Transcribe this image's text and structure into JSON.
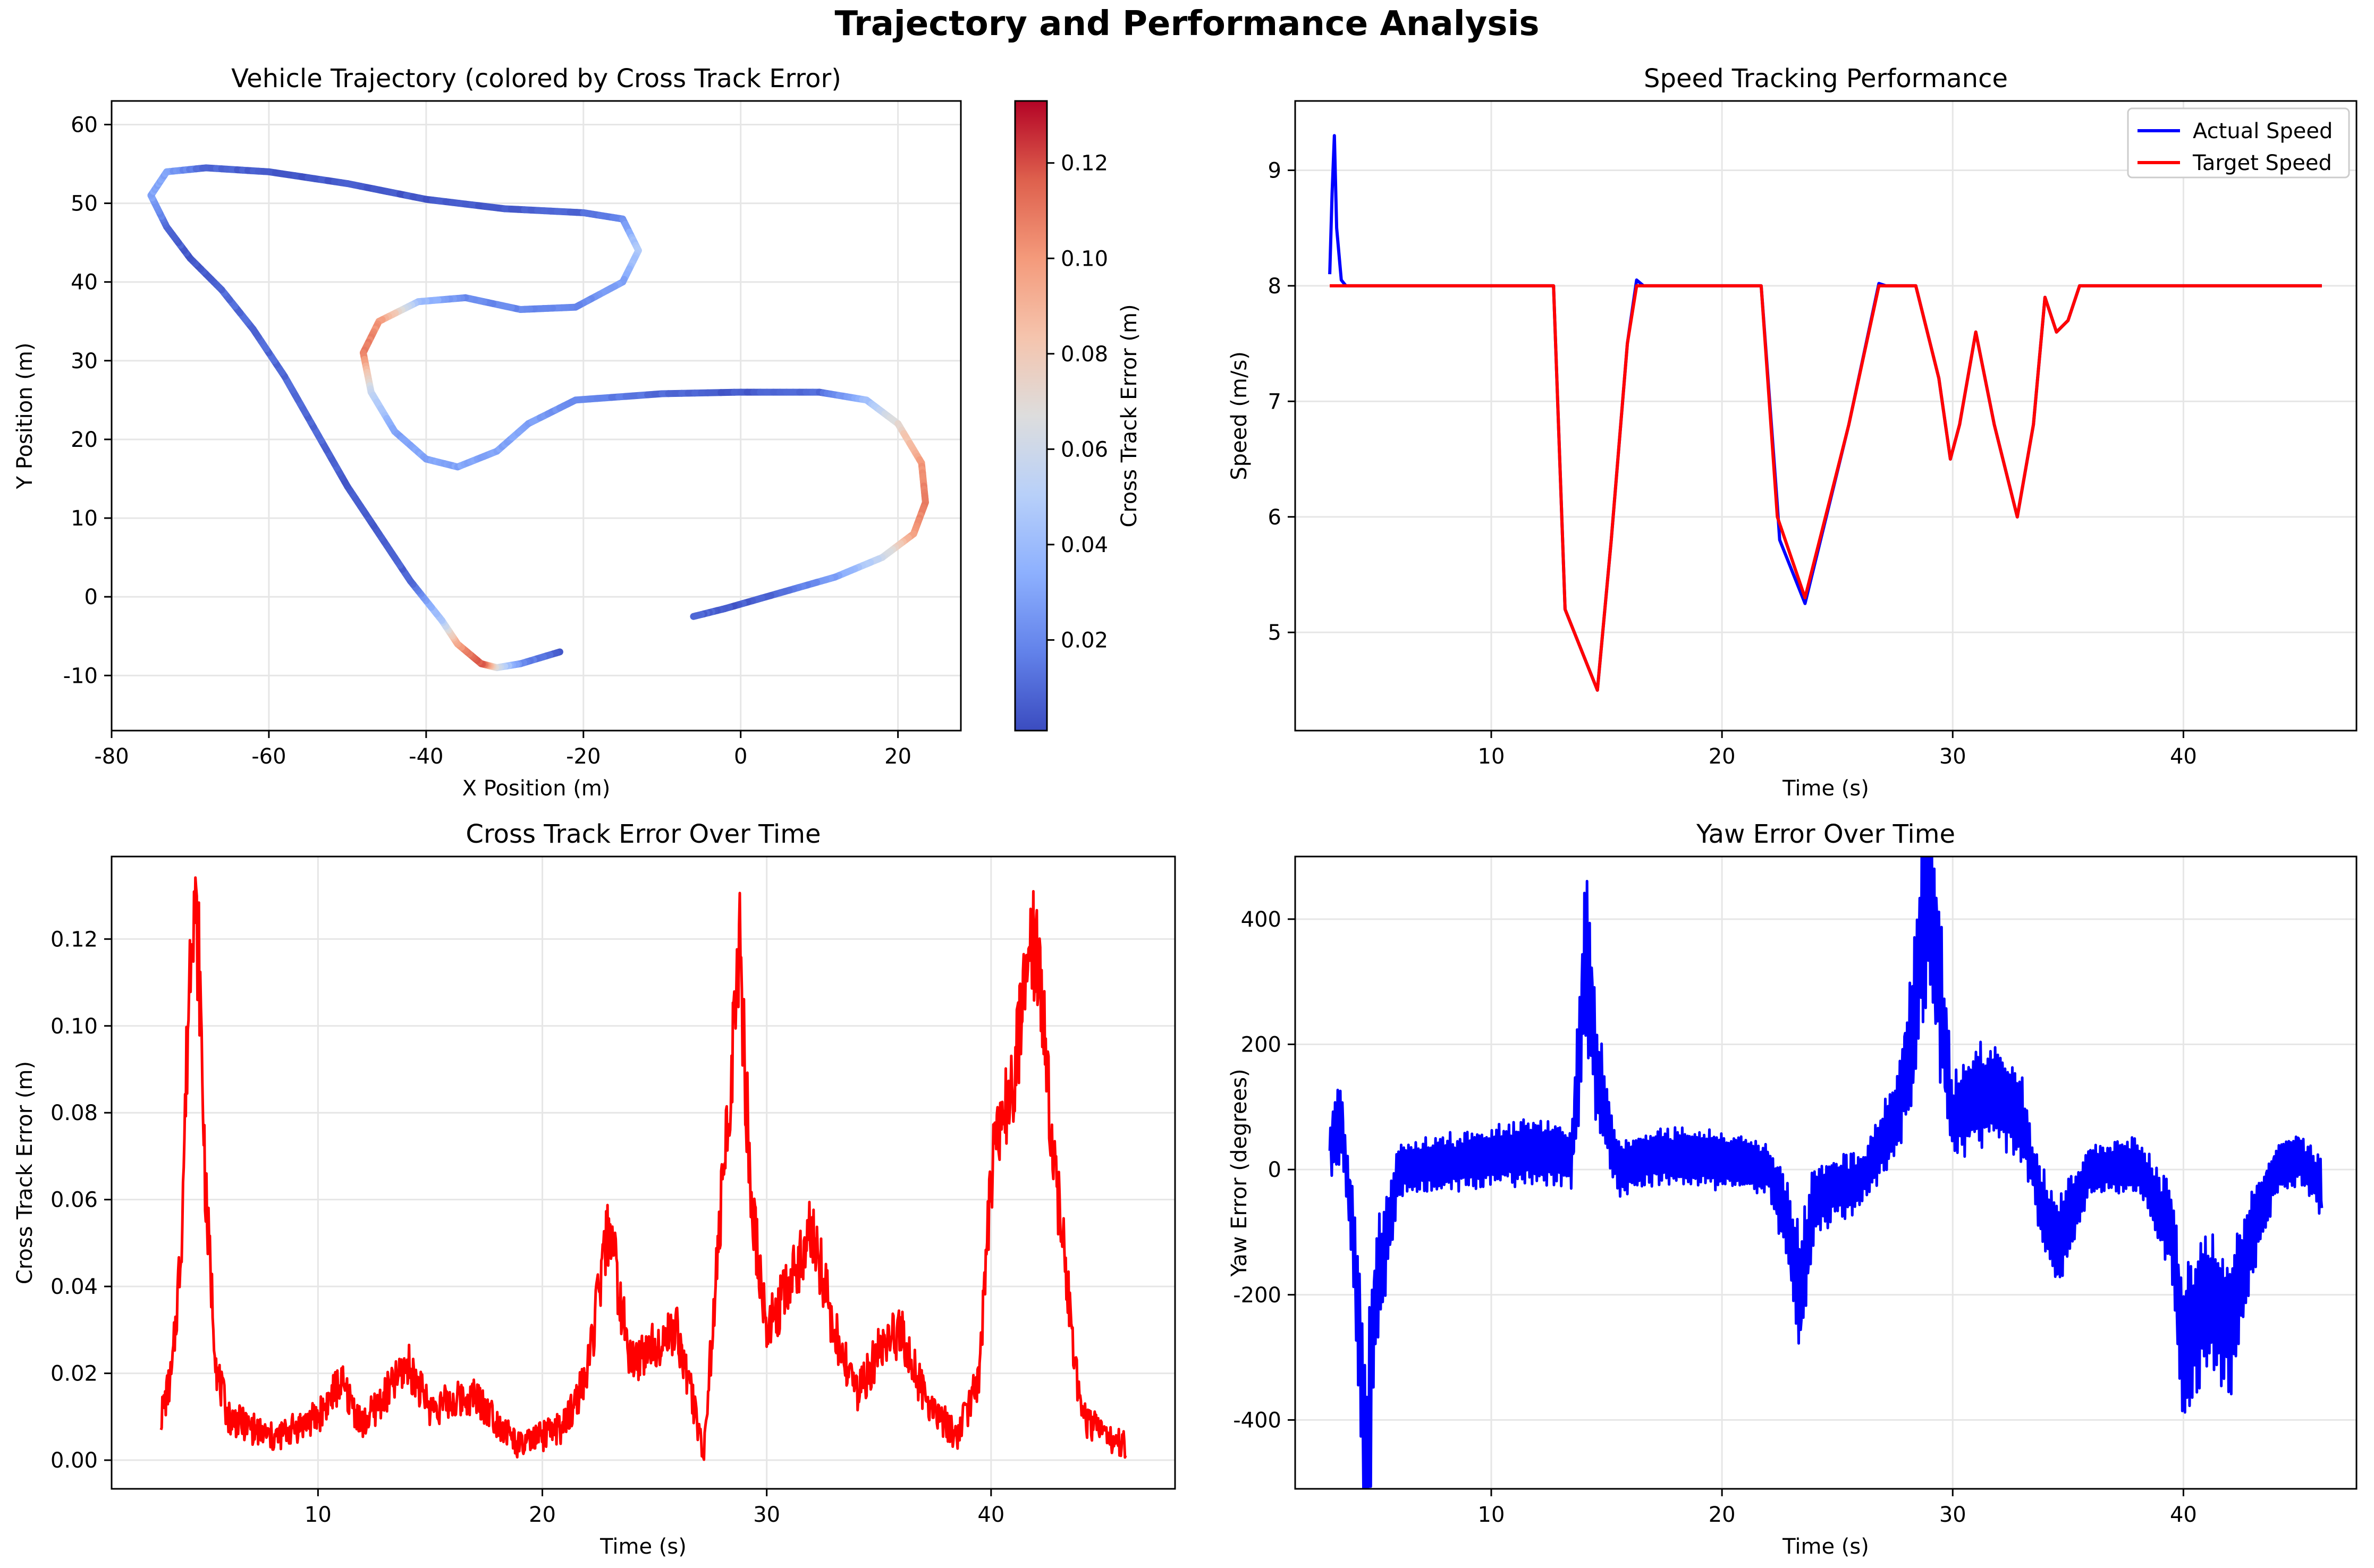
{
  "figure_title": "Trajectory and Performance Analysis",
  "chart_data": [
    {
      "type": "scatter",
      "title": "Vehicle Trajectory (colored by Cross Track Error)",
      "xlabel": "X Position (m)",
      "ylabel": "Y Position (m)",
      "xlim": [
        -80,
        28
      ],
      "ylim": [
        -17,
        63
      ],
      "xticks": [
        -80,
        -60,
        -40,
        -20,
        0,
        20
      ],
      "yticks": [
        -10,
        0,
        10,
        20,
        30,
        40,
        50,
        60
      ],
      "grid": true,
      "colormap": "coolwarm",
      "colorbar": {
        "label": "Cross Track Error (m)",
        "min": 0.001,
        "max": 0.133,
        "ticks": [
          0.02,
          0.04,
          0.06,
          0.08,
          0.1,
          0.12
        ],
        "tick_labels": [
          "0.02",
          "0.04",
          "0.06",
          "0.08",
          "0.10",
          "0.12"
        ]
      },
      "points": [
        {
          "x": -23,
          "y": -7,
          "c": 0.005
        },
        {
          "x": -28,
          "y": -8.5,
          "c": 0.02
        },
        {
          "x": -31,
          "y": -9,
          "c": 0.06
        },
        {
          "x": -33,
          "y": -8.5,
          "c": 0.12
        },
        {
          "x": -36,
          "y": -6,
          "c": 0.1
        },
        {
          "x": -38,
          "y": -3,
          "c": 0.05
        },
        {
          "x": -42,
          "y": 2,
          "c": 0.01
        },
        {
          "x": -46,
          "y": 8,
          "c": 0.005
        },
        {
          "x": -50,
          "y": 14,
          "c": 0.005
        },
        {
          "x": -54,
          "y": 21,
          "c": 0.01
        },
        {
          "x": -58,
          "y": 28,
          "c": 0.01
        },
        {
          "x": -62,
          "y": 34,
          "c": 0.01
        },
        {
          "x": -66,
          "y": 39,
          "c": 0.01
        },
        {
          "x": -70,
          "y": 43,
          "c": 0.005
        },
        {
          "x": -73,
          "y": 47,
          "c": 0.01
        },
        {
          "x": -75,
          "y": 51,
          "c": 0.03
        },
        {
          "x": -73,
          "y": 54,
          "c": 0.03
        },
        {
          "x": -68,
          "y": 54.5,
          "c": 0.01
        },
        {
          "x": -60,
          "y": 54,
          "c": 0.005
        },
        {
          "x": -50,
          "y": 52.5,
          "c": 0.005
        },
        {
          "x": -40,
          "y": 50.5,
          "c": 0.005
        },
        {
          "x": -30,
          "y": 49.3,
          "c": 0.005
        },
        {
          "x": -20,
          "y": 48.8,
          "c": 0.01
        },
        {
          "x": -15,
          "y": 48,
          "c": 0.02
        },
        {
          "x": -13,
          "y": 44,
          "c": 0.05
        },
        {
          "x": -15,
          "y": 40,
          "c": 0.03
        },
        {
          "x": -21,
          "y": 36.8,
          "c": 0.02
        },
        {
          "x": -28,
          "y": 36.5,
          "c": 0.02
        },
        {
          "x": -35,
          "y": 38,
          "c": 0.02
        },
        {
          "x": -41,
          "y": 37.5,
          "c": 0.04
        },
        {
          "x": -46,
          "y": 35,
          "c": 0.1
        },
        {
          "x": -48,
          "y": 31,
          "c": 0.11
        },
        {
          "x": -47,
          "y": 26,
          "c": 0.06
        },
        {
          "x": -44,
          "y": 21,
          "c": 0.03
        },
        {
          "x": -40,
          "y": 17.5,
          "c": 0.03
        },
        {
          "x": -36,
          "y": 16.5,
          "c": 0.03
        },
        {
          "x": -31,
          "y": 18.5,
          "c": 0.03
        },
        {
          "x": -27,
          "y": 22,
          "c": 0.03
        },
        {
          "x": -21,
          "y": 25,
          "c": 0.02
        },
        {
          "x": -10,
          "y": 25.8,
          "c": 0.01
        },
        {
          "x": 0,
          "y": 26,
          "c": 0.005
        },
        {
          "x": 10,
          "y": 26,
          "c": 0.01
        },
        {
          "x": 16,
          "y": 25,
          "c": 0.04
        },
        {
          "x": 20,
          "y": 22,
          "c": 0.07
        },
        {
          "x": 23,
          "y": 17,
          "c": 0.1
        },
        {
          "x": 23.5,
          "y": 12,
          "c": 0.11
        },
        {
          "x": 22,
          "y": 8,
          "c": 0.1
        },
        {
          "x": 18,
          "y": 5,
          "c": 0.06
        },
        {
          "x": 12,
          "y": 2.5,
          "c": 0.03
        },
        {
          "x": 5,
          "y": 0.5,
          "c": 0.01
        },
        {
          "x": -2,
          "y": -1.5,
          "c": 0.005
        },
        {
          "x": -6,
          "y": -2.5,
          "c": 0.01
        }
      ]
    },
    {
      "type": "line",
      "title": "Speed Tracking Performance",
      "xlabel": "Time (s)",
      "ylabel": "Speed (m/s)",
      "xlim": [
        1.5,
        47.5
      ],
      "ylim": [
        4.15,
        9.6
      ],
      "xticks": [
        10,
        20,
        30,
        40
      ],
      "yticks": [
        5,
        6,
        7,
        8,
        9
      ],
      "grid": true,
      "legend": "top-right",
      "series": [
        {
          "name": "Actual Speed",
          "color": "#0000ff",
          "x": [
            3,
            3.1,
            3.2,
            3.3,
            3.5,
            3.7,
            4,
            12.7,
            13.2,
            14.6,
            15.2,
            15.9,
            16.3,
            16.6,
            17,
            21.7,
            22.4,
            22.5,
            23.6,
            25.5,
            26.8,
            27.1,
            28.4,
            29.4,
            29.9,
            30.3,
            31,
            31.8,
            32.8,
            33.5,
            34,
            34.5,
            35,
            35.5,
            36,
            46
          ]
        },
        {
          "name": "Target Speed",
          "color": "#ff0000",
          "x": [
            3,
            12.7,
            13.2,
            14.6,
            15.2,
            15.9,
            16.3,
            21.7,
            22.4,
            23.6,
            25.5,
            26.8,
            28.4,
            29.4,
            29.9,
            30.3,
            31,
            31.8,
            32.8,
            33.5,
            34,
            34.5,
            35,
            35.5,
            46
          ]
        }
      ],
      "actual_y": [
        8.1,
        8.8,
        9.3,
        8.5,
        8.05,
        8.0,
        8.0,
        8.0,
        5.2,
        4.5,
        5.8,
        7.5,
        8.05,
        8.0,
        8.0,
        8.0,
        6.1,
        5.8,
        5.25,
        6.8,
        8.02,
        8.0,
        8.0,
        7.2,
        6.5,
        6.8,
        7.6,
        6.8,
        6.0,
        6.8,
        7.9,
        7.6,
        7.7,
        8.0,
        8.0,
        8.0
      ],
      "target_y": [
        8.0,
        8.0,
        5.2,
        4.5,
        5.8,
        7.5,
        8.0,
        8.0,
        6.0,
        5.3,
        6.8,
        8.0,
        8.0,
        7.2,
        6.5,
        6.8,
        7.6,
        6.8,
        6.0,
        6.8,
        7.9,
        7.6,
        7.7,
        8.0,
        8.0
      ]
    },
    {
      "type": "line",
      "title": "Cross Track Error Over Time",
      "xlabel": "Time (s)",
      "ylabel": "Cross Track Error (m)",
      "xlim": [
        0.8,
        48.2
      ],
      "ylim": [
        -0.0066,
        0.139
      ],
      "xticks": [
        10,
        20,
        30,
        40
      ],
      "yticks": [
        0.0,
        0.02,
        0.04,
        0.06,
        0.08,
        0.1,
        0.12
      ],
      "ytick_labels": [
        "0.00",
        "0.02",
        "0.04",
        "0.06",
        "0.08",
        "0.10",
        "0.12"
      ],
      "grid": true,
      "series": [
        {
          "color": "#ff0000",
          "x": [
            3,
            3.5,
            3.9,
            4.2,
            4.4,
            4.7,
            5.0,
            5.5,
            6,
            8,
            10,
            11,
            12,
            13,
            14,
            15,
            17,
            19,
            21,
            22,
            23,
            23.5,
            24,
            25,
            26,
            27.2,
            28,
            28.8,
            29.3,
            30,
            31,
            32,
            33,
            34,
            35,
            36,
            37,
            38.5,
            39.5,
            40,
            41,
            42,
            43,
            44,
            46
          ],
          "y": [
            0.01,
            0.02,
            0.05,
            0.1,
            0.133,
            0.115,
            0.06,
            0.02,
            0.01,
            0.005,
            0.01,
            0.018,
            0.008,
            0.015,
            0.022,
            0.012,
            0.015,
            0.003,
            0.008,
            0.02,
            0.055,
            0.035,
            0.022,
            0.027,
            0.03,
            0.002,
            0.06,
            0.117,
            0.06,
            0.03,
            0.04,
            0.054,
            0.03,
            0.015,
            0.025,
            0.03,
            0.015,
            0.005,
            0.02,
            0.065,
            0.09,
            0.12,
            0.06,
            0.01,
            0.003
          ]
        }
      ]
    },
    {
      "type": "line",
      "title": "Yaw Error Over Time",
      "xlabel": "Time (s)",
      "ylabel": "Yaw Error (degrees)",
      "xlim": [
        1.5,
        47.5
      ],
      "ylim": [
        -510,
        500
      ],
      "xticks": [
        10,
        20,
        30,
        40
      ],
      "yticks": [
        -400,
        -200,
        0,
        200,
        400
      ],
      "grid": true,
      "series": [
        {
          "color": "#0000ff",
          "x": [
            3,
            3.5,
            4,
            4.6,
            5.0,
            6,
            8,
            10,
            12,
            13.5,
            14.1,
            14.6,
            15.5,
            17,
            19,
            21,
            22,
            22.8,
            23.4,
            24,
            25,
            26,
            27.5,
            28.2,
            28.9,
            29.4,
            30,
            31,
            32,
            33,
            33.8,
            34.5,
            36,
            38,
            39.5,
            40,
            41,
            42,
            43,
            44,
            45,
            46
          ],
          "y": [
            30,
            80,
            -100,
            -480,
            -200,
            0,
            10,
            20,
            30,
            20,
            350,
            150,
            0,
            20,
            20,
            10,
            0,
            -80,
            -200,
            -50,
            -30,
            -20,
            80,
            200,
            460,
            300,
            80,
            120,
            120,
            80,
            -50,
            -120,
            0,
            10,
            -100,
            -300,
            -200,
            -250,
            -100,
            0,
            20,
            -30
          ]
        }
      ]
    }
  ]
}
